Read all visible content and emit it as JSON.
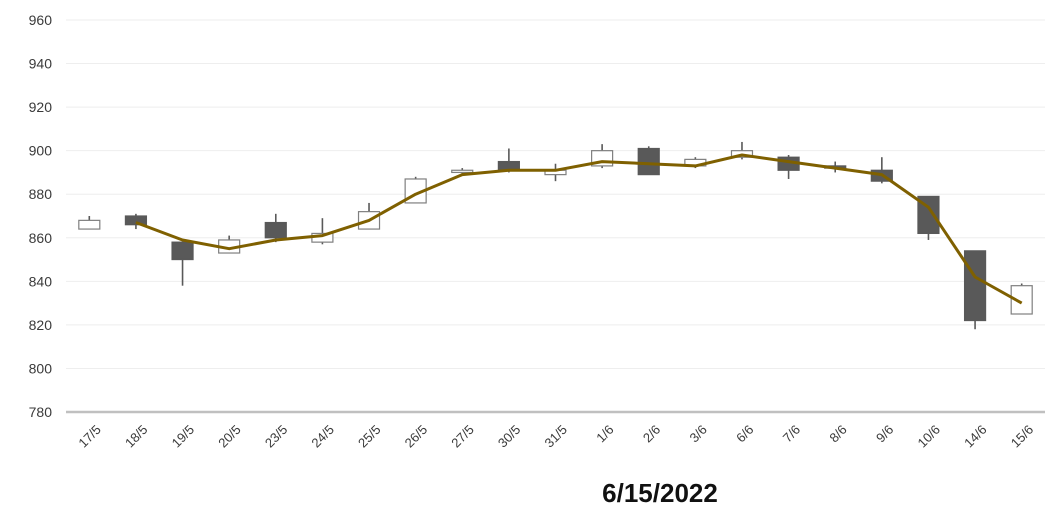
{
  "chart_data": {
    "type": "candlestick",
    "caption": "6/15/2022",
    "ylim": [
      780,
      960
    ],
    "yticks": [
      780,
      800,
      820,
      840,
      860,
      880,
      900,
      920,
      940,
      960
    ],
    "grid": true,
    "legend": "none",
    "colors": {
      "up_fill": "#ffffff",
      "up_stroke": "#7f7f7f",
      "down_fill": "#595959",
      "wick": "#595959",
      "grid": "#eeeeee",
      "axis": "#c0c0c0",
      "trend": "#7f6000"
    },
    "categories": [
      "17/5",
      "18/5",
      "19/5",
      "20/5",
      "23/5",
      "24/5",
      "25/5",
      "26/5",
      "27/5",
      "30/5",
      "31/5",
      "1/6",
      "2/6",
      "3/6",
      "6/6",
      "7/6",
      "8/6",
      "9/6",
      "10/6",
      "14/6",
      "15/6"
    ],
    "open": [
      864,
      870,
      858,
      853,
      867,
      858,
      864,
      876,
      890,
      895,
      889,
      893,
      901,
      893,
      897,
      897,
      893,
      891,
      879,
      854,
      825
    ],
    "high": [
      870,
      871,
      858,
      861,
      871,
      869,
      876,
      888,
      892,
      901,
      894,
      903,
      902,
      897,
      904,
      898,
      895,
      897,
      879,
      854,
      839
    ],
    "low": [
      864,
      864,
      838,
      853,
      858,
      857,
      864,
      876,
      889,
      890,
      886,
      892,
      889,
      892,
      896,
      887,
      890,
      885,
      859,
      818,
      825
    ],
    "close": [
      868,
      866,
      850,
      859,
      860,
      862,
      872,
      887,
      891,
      891,
      891,
      900,
      889,
      896,
      900,
      891,
      892,
      886,
      862,
      822,
      838
    ],
    "trend": [
      null,
      867,
      859,
      855,
      859,
      861,
      868,
      880,
      889,
      891,
      891,
      895,
      894,
      893,
      898,
      895,
      892,
      889,
      874,
      842,
      830
    ]
  }
}
